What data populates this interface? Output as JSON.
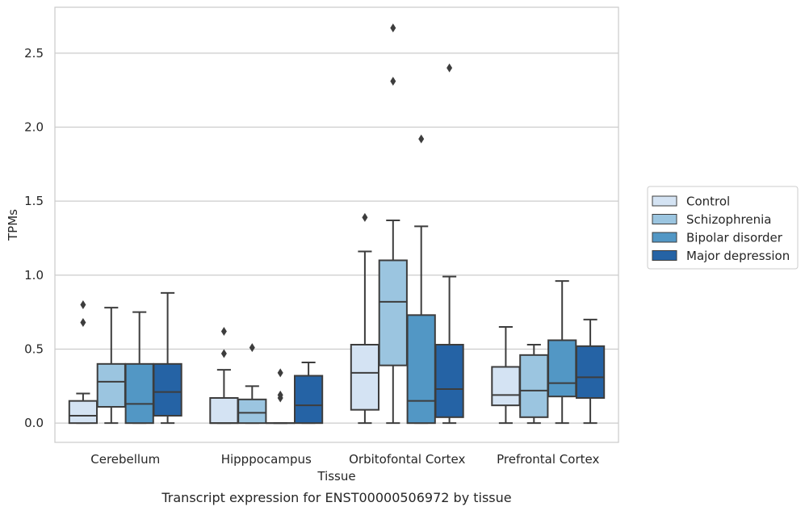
{
  "chart_data": {
    "type": "box",
    "caption": "Transcript expression for ENST00000506972 by tissue",
    "xlabel": "Tissue",
    "ylabel": "TPMs",
    "ylim": [
      -0.13,
      2.81
    ],
    "yticks": [
      0.0,
      0.5,
      1.0,
      1.5,
      2.0,
      2.5
    ],
    "ytick_labels": [
      "0.0",
      "0.5",
      "1.0",
      "1.5",
      "2.0",
      "2.5"
    ],
    "grid": "horizontal",
    "legend_position": "right",
    "categories": [
      "Cerebellum",
      "Hipppocampus",
      "Orbitofontal Cortex",
      "Prefrontal Cortex"
    ],
    "series": [
      {
        "name": "Control",
        "color": "#d4e3f3",
        "boxes": [
          {
            "whisker_low": 0.0,
            "q1": 0.0,
            "median": 0.05,
            "q3": 0.15,
            "whisker_high": 0.2,
            "outliers": [
              0.68,
              0.8
            ]
          },
          {
            "whisker_low": 0.0,
            "q1": 0.0,
            "median": 0.0,
            "q3": 0.17,
            "whisker_high": 0.36,
            "outliers": [
              0.47,
              0.62
            ]
          },
          {
            "whisker_low": 0.0,
            "q1": 0.09,
            "median": 0.34,
            "q3": 0.53,
            "whisker_high": 1.16,
            "outliers": [
              1.39
            ]
          },
          {
            "whisker_low": 0.0,
            "q1": 0.12,
            "median": 0.19,
            "q3": 0.38,
            "whisker_high": 0.65,
            "outliers": []
          }
        ]
      },
      {
        "name": "Schizophrenia",
        "color": "#9bc5e0",
        "boxes": [
          {
            "whisker_low": 0.0,
            "q1": 0.11,
            "median": 0.28,
            "q3": 0.4,
            "whisker_high": 0.78,
            "outliers": []
          },
          {
            "whisker_low": 0.0,
            "q1": 0.0,
            "median": 0.07,
            "q3": 0.16,
            "whisker_high": 0.25,
            "outliers": [
              0.51
            ]
          },
          {
            "whisker_low": 0.0,
            "q1": 0.39,
            "median": 0.82,
            "q3": 1.1,
            "whisker_high": 1.37,
            "outliers": [
              2.31,
              2.67
            ]
          },
          {
            "whisker_low": 0.0,
            "q1": 0.04,
            "median": 0.22,
            "q3": 0.46,
            "whisker_high": 0.53,
            "outliers": []
          }
        ]
      },
      {
        "name": "Bipolar disorder",
        "color": "#5297c5",
        "boxes": [
          {
            "whisker_low": 0.0,
            "q1": 0.0,
            "median": 0.13,
            "q3": 0.4,
            "whisker_high": 0.75,
            "outliers": []
          },
          {
            "whisker_low": 0.0,
            "q1": 0.0,
            "median": 0.0,
            "q3": 0.0,
            "whisker_high": 0.0,
            "outliers": [
              0.17,
              0.19,
              0.34
            ]
          },
          {
            "whisker_low": 0.0,
            "q1": 0.0,
            "median": 0.15,
            "q3": 0.73,
            "whisker_high": 1.33,
            "outliers": [
              1.92
            ]
          },
          {
            "whisker_low": 0.0,
            "q1": 0.18,
            "median": 0.27,
            "q3": 0.56,
            "whisker_high": 0.96,
            "outliers": []
          }
        ]
      },
      {
        "name": "Major depression",
        "color": "#2563a5",
        "boxes": [
          {
            "whisker_low": 0.0,
            "q1": 0.05,
            "median": 0.21,
            "q3": 0.4,
            "whisker_high": 0.88,
            "outliers": []
          },
          {
            "whisker_low": 0.0,
            "q1": 0.0,
            "median": 0.12,
            "q3": 0.32,
            "whisker_high": 0.41,
            "outliers": []
          },
          {
            "whisker_low": 0.0,
            "q1": 0.04,
            "median": 0.23,
            "q3": 0.53,
            "whisker_high": 0.99,
            "outliers": [
              2.4
            ]
          },
          {
            "whisker_low": 0.0,
            "q1": 0.17,
            "median": 0.31,
            "q3": 0.52,
            "whisker_high": 0.7,
            "outliers": []
          }
        ]
      }
    ]
  }
}
